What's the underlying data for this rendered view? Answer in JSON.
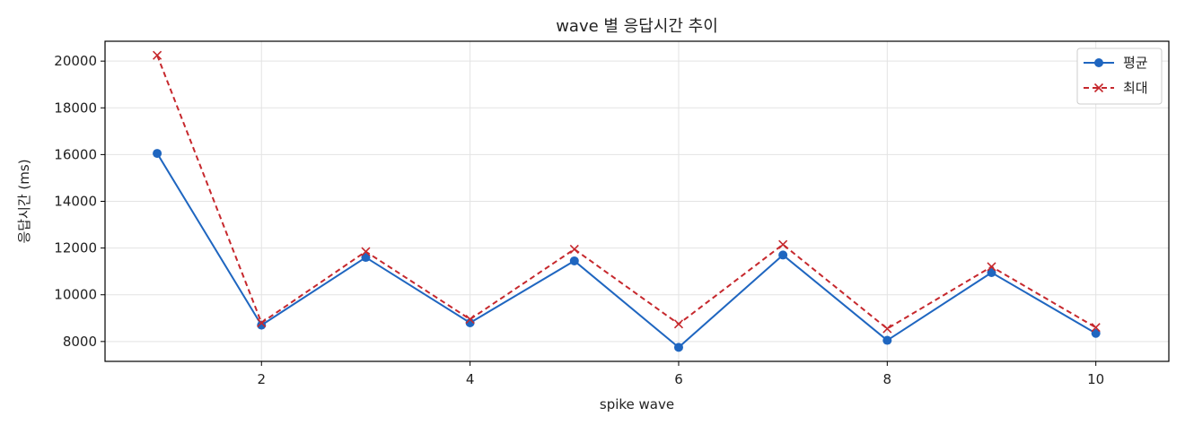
{
  "chart_data": {
    "type": "line",
    "title": "wave 별 응답시간 추이",
    "xlabel": "spike wave",
    "ylabel": "응답시간 (ms)",
    "x": [
      1,
      2,
      3,
      4,
      5,
      6,
      7,
      8,
      9,
      10
    ],
    "xlim": [
      0.5,
      10.7
    ],
    "ylim": [
      7150,
      20850
    ],
    "xticks": [
      2,
      4,
      6,
      8,
      10
    ],
    "yticks": [
      8000,
      10000,
      12000,
      14000,
      16000,
      18000,
      20000
    ],
    "grid": true,
    "legend_position": "top-right",
    "series": [
      {
        "name": "평균",
        "values": [
          16050,
          8700,
          11600,
          8800,
          11450,
          7750,
          11700,
          8050,
          10950,
          8350
        ],
        "color": "#1f66c0",
        "marker": "circle",
        "line_style": "solid"
      },
      {
        "name": "최대",
        "values": [
          20250,
          8800,
          11850,
          8950,
          11950,
          8750,
          12150,
          8550,
          11200,
          8600
        ],
        "color": "#c6282d",
        "marker": "x",
        "line_style": "dashed"
      }
    ]
  }
}
